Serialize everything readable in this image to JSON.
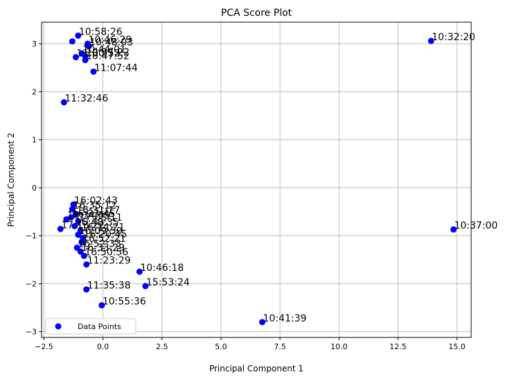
{
  "chart_data": {
    "type": "scatter",
    "title": "PCA Score Plot",
    "xlabel": "Principal Component 1",
    "ylabel": "Principal Component 2",
    "xlim": [
      -2.6,
      15.6
    ],
    "ylim": [
      -3.12,
      3.45
    ],
    "xticks": [
      -2.5,
      0.0,
      2.5,
      5.0,
      7.5,
      10.0,
      12.5,
      15.0
    ],
    "xtick_labels": [
      "−2.5",
      "0.0",
      "2.5",
      "5.0",
      "7.5",
      "10.0",
      "12.5",
      "15.0"
    ],
    "yticks": [
      -3,
      -2,
      -1,
      0,
      1,
      2,
      3
    ],
    "ytick_labels": [
      "−3",
      "−2",
      "−1",
      "0",
      "1",
      "2",
      "3"
    ],
    "grid": true,
    "legend": {
      "position": "lower-left",
      "entries": [
        "Data Points"
      ]
    },
    "marker_color": "#0000ff",
    "series": [
      {
        "name": "Data Points",
        "points": [
          {
            "x": -1.3,
            "y": 3.05,
            "label": ""
          },
          {
            "x": -1.05,
            "y": 3.17,
            "label": "10:58:26"
          },
          {
            "x": -0.65,
            "y": 3.0,
            "label": "10:46:29"
          },
          {
            "x": -0.6,
            "y": 2.95,
            "label": "10:48:03"
          },
          {
            "x": -0.9,
            "y": 2.8,
            "label": "10:44:01"
          },
          {
            "x": -0.75,
            "y": 2.74,
            "label": "10:37:22"
          },
          {
            "x": -1.15,
            "y": 2.72,
            "label": "11:00:52"
          },
          {
            "x": -0.75,
            "y": 2.66,
            "label": "10:47:52"
          },
          {
            "x": -0.4,
            "y": 2.42,
            "label": "11:07:44"
          },
          {
            "x": -1.65,
            "y": 1.78,
            "label": "11:32:46"
          },
          {
            "x": 13.9,
            "y": 3.06,
            "label": "10:32:20"
          },
          {
            "x": -1.25,
            "y": -0.35,
            "label": "16:02:43"
          },
          {
            "x": -1.3,
            "y": -0.45,
            "label": "16:35:12"
          },
          {
            "x": -1.15,
            "y": -0.55,
            "label": "16:31:17"
          },
          {
            "x": -1.35,
            "y": -0.62,
            "label": "16:33:45"
          },
          {
            "x": -1.55,
            "y": -0.66,
            "label": "16:34:59"
          },
          {
            "x": -1.05,
            "y": -0.7,
            "label": "17:05:11"
          },
          {
            "x": -1.8,
            "y": -0.86,
            "label": "17:13:22"
          },
          {
            "x": -1.2,
            "y": -0.8,
            "label": "16:48:35"
          },
          {
            "x": -0.95,
            "y": -0.9,
            "label": "16:14:21"
          },
          {
            "x": -1.05,
            "y": -0.98,
            "label": "16:09:50"
          },
          {
            "x": -0.85,
            "y": -1.05,
            "label": "16:20:45"
          },
          {
            "x": -0.9,
            "y": -1.14,
            "label": "16:52:21"
          },
          {
            "x": -1.1,
            "y": -1.25,
            "label": "16:52:33"
          },
          {
            "x": -0.95,
            "y": -1.33,
            "label": "16:33:29"
          },
          {
            "x": -0.8,
            "y": -1.42,
            "label": "16:50:56"
          },
          {
            "x": -0.7,
            "y": -1.6,
            "label": "11:23:29"
          },
          {
            "x": 1.55,
            "y": -1.75,
            "label": "10:46:18"
          },
          {
            "x": 1.8,
            "y": -2.05,
            "label": "15:53:24"
          },
          {
            "x": -0.7,
            "y": -2.12,
            "label": "11:35:38"
          },
          {
            "x": -0.05,
            "y": -2.45,
            "label": "10:55:36"
          },
          {
            "x": 6.75,
            "y": -2.8,
            "label": "10:41:39"
          },
          {
            "x": 14.85,
            "y": -0.87,
            "label": "10:37:00"
          }
        ]
      }
    ]
  }
}
